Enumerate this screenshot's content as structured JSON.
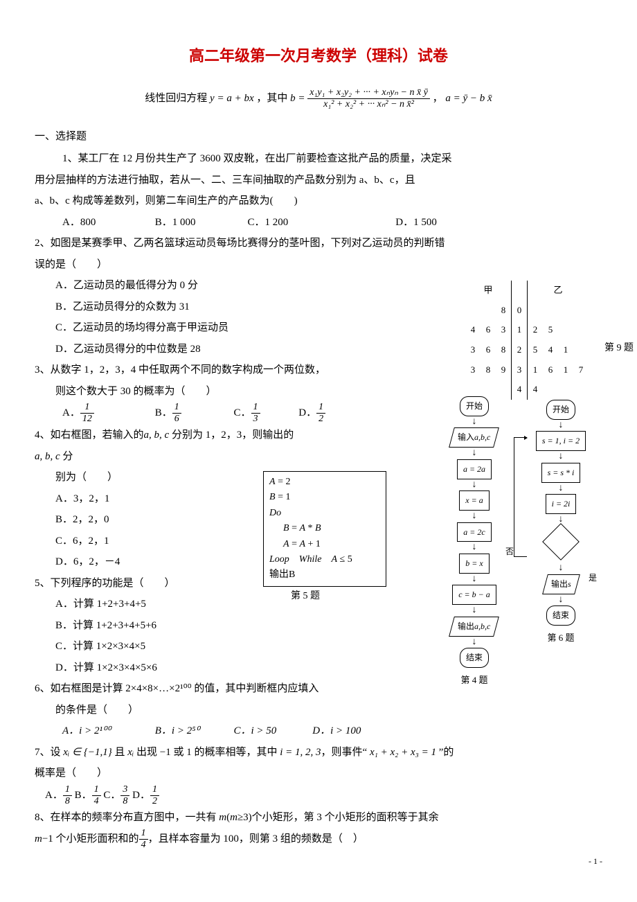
{
  "title": "高二年级第一次月考数学（理科）试卷",
  "side_label": "第 9 题",
  "formula": {
    "prefix": "线性回归方程 ",
    "eq1": "y = a + bx",
    "mid": "，其中",
    "b_lhs": "b =",
    "b_num": "x₁y₁ + x₂y₂ + ··· + xₙyₙ − n x̄ ȳ",
    "b_den": "x₁² + x₂² + ··· xₙ² − n x̄²",
    "sep": "，",
    "a_eq": "a = ȳ − b x̄"
  },
  "section1": "一、选择题",
  "q1": {
    "text_l1": "1、某工厂在 12 月份共生产了 3600 双皮靴，在出厂前要检查这批产品的质量，决定采",
    "text_l2": "用分层抽样的方法进行抽取，若从一、二、三车间抽取的产品数分别为 a、b、c，且",
    "text_l3": "a、b、c 构成等差数列，则第二车间生产的产品数为(　　)",
    "A": "A．800",
    "B": "B．1 000",
    "C": "C．1 200",
    "D": "D．1 500"
  },
  "q2": {
    "stem1": "2、如图是某赛季甲、乙两名篮球运动员每场比赛得分的茎叶图，下列对乙运动员的判断错",
    "stem2": "误的是（　　）",
    "A": "A．乙运动员的最低得分为 0 分",
    "B": "B．乙运动员得分的众数为 31",
    "C": "C．乙运动员的场均得分高于甲运动员",
    "D": "D．乙运动员得分的中位数是 28",
    "stem_leaf_head": {
      "left": "甲",
      "right": "乙"
    },
    "stem_leaf_rows": [
      {
        "left": [
          "",
          "",
          "8"
        ],
        "mid": "0",
        "right": [
          "",
          "",
          "",
          ""
        ]
      },
      {
        "left": [
          "4",
          "6",
          "3"
        ],
        "mid": "1",
        "right": [
          "2",
          "5",
          "",
          ""
        ]
      },
      {
        "left": [
          "3",
          "6",
          "8"
        ],
        "mid": "2",
        "right": [
          "5",
          "4",
          "1",
          ""
        ]
      },
      {
        "left": [
          "3",
          "8",
          "9"
        ],
        "mid": "3",
        "right": [
          "1",
          "6",
          "1",
          "7"
        ]
      },
      {
        "left": [
          "",
          "",
          ""
        ],
        "mid": "4",
        "right": [
          "4",
          "",
          "",
          ""
        ]
      }
    ]
  },
  "q3": {
    "stem1": "3、从数字 1，2，3，4 中任取两个不同的数字构成一个两位数，",
    "stem2": "则这个数大于 30 的概率为（　　）",
    "A_pre": "A．",
    "A_num": "1",
    "A_den": "12",
    "B_pre": "B．",
    "B_num": "1",
    "B_den": "6",
    "C_pre": "C．",
    "C_num": "1",
    "C_den": "3",
    "D_pre": "D．",
    "D_num": "1",
    "D_den": "2"
  },
  "q4": {
    "stem1": "4、如右框图，若输入的",
    "stem1_mi": "a, b, c",
    "stem1_tail": " 分别为 1，2，3，则输出的",
    "stem2_mi": "a, b, c",
    "stem2_tail": " 分",
    "stem3": "别为（　　）",
    "A": "A．3，2，1",
    "B": "B．2，2，0",
    "C": "C．6，2，1",
    "D": "D．6，2，－4",
    "fc": {
      "start": "开始",
      "in_lbl": "输入",
      "in_v": "a,b,c",
      "p1": "a = 2a",
      "p2": "x = a",
      "p3": "a = 2c",
      "p4": "b = x",
      "p5": "c = b − a",
      "out_lbl": "输出",
      "out_v": "a,b,c",
      "end": "结束",
      "caption": "第 4 题"
    }
  },
  "q5": {
    "stem": "5、下列程序的功能是（　　）",
    "A": "A．计算 1+2+3+4+5",
    "B": "B．计算 1+2+3+4+5+6",
    "C": "C．计算 1×2×3×4×5",
    "D": "D．计算 1×2×3×4×5×6",
    "code": {
      "l1a": "A",
      "l1b": " = 2",
      "l2a": "B",
      "l2b": " = 1",
      "l3": "Do",
      "l4a": "B",
      "l4b": " = ",
      "l4c": "A",
      "l4d": " * ",
      "l4e": "B",
      "l5a": "A",
      "l5b": " = ",
      "l5c": "A",
      "l5d": " + 1",
      "l6a": "Loop　While　",
      "l6b": "A",
      "l6c": " ≤ 5",
      "l7": "输出B"
    },
    "caption": "第 5 题"
  },
  "q6": {
    "stem1": "6、如右框图是计算 2×4×8×…×2¹⁰⁰ 的值，其中判断框内应填入",
    "stem2": "的条件是（　　）",
    "A": "A．i > 2¹⁰⁰",
    "B": "B．i > 2⁵⁰",
    "C": "C．i > 50",
    "D": "D．i > 100",
    "fc": {
      "start": "开始",
      "p1": "s = 1, i = 2",
      "p2": "s = s * i",
      "p3": "i = 2i",
      "no": "否",
      "yes": "是",
      "out_lbl": "输出",
      "out_v": "s",
      "end": "结束",
      "caption": "第 6 题"
    }
  },
  "q7": {
    "stem_p1": "7、设",
    "stem_mi1": " xᵢ ∈ {−1,1} ",
    "stem_p2": "且",
    "stem_mi2": " xᵢ ",
    "stem_p3": "出现 −1 或 1 的概率相等，其中",
    "stem_mi3": " i = 1, 2, 3",
    "stem_p4": "，则事件“",
    "stem_mi4": " x₁ + x₂ + x₃ = 1 ",
    "stem_p5": "”的",
    "stem2": "概率是（　　）",
    "A_pre": "A．",
    "A_num": "1",
    "A_den": "8",
    "B_pre": "B．",
    "B_num": "1",
    "B_den": "4",
    "C_pre": "C．",
    "C_num": "3",
    "C_den": "8",
    "D_pre": "D．",
    "D_num": "1",
    "D_den": "2"
  },
  "q8": {
    "l1_p1": "8、在样本的频率分布直方图中，一共有 ",
    "l1_mi1": "m",
    "l1_p2": "(",
    "l1_mi2": "m",
    "l1_p3": "≥3)个小矩形，第 3 个小矩形的面积等于其余",
    "l2_mi1": "m",
    "l2_p1": "−1 个小矩形面积和的",
    "l2_num": "1",
    "l2_den": "4",
    "l2_p2": "，且样本容量为 100，则第 3 组的频数是（　）"
  },
  "footer": "- 1 -"
}
